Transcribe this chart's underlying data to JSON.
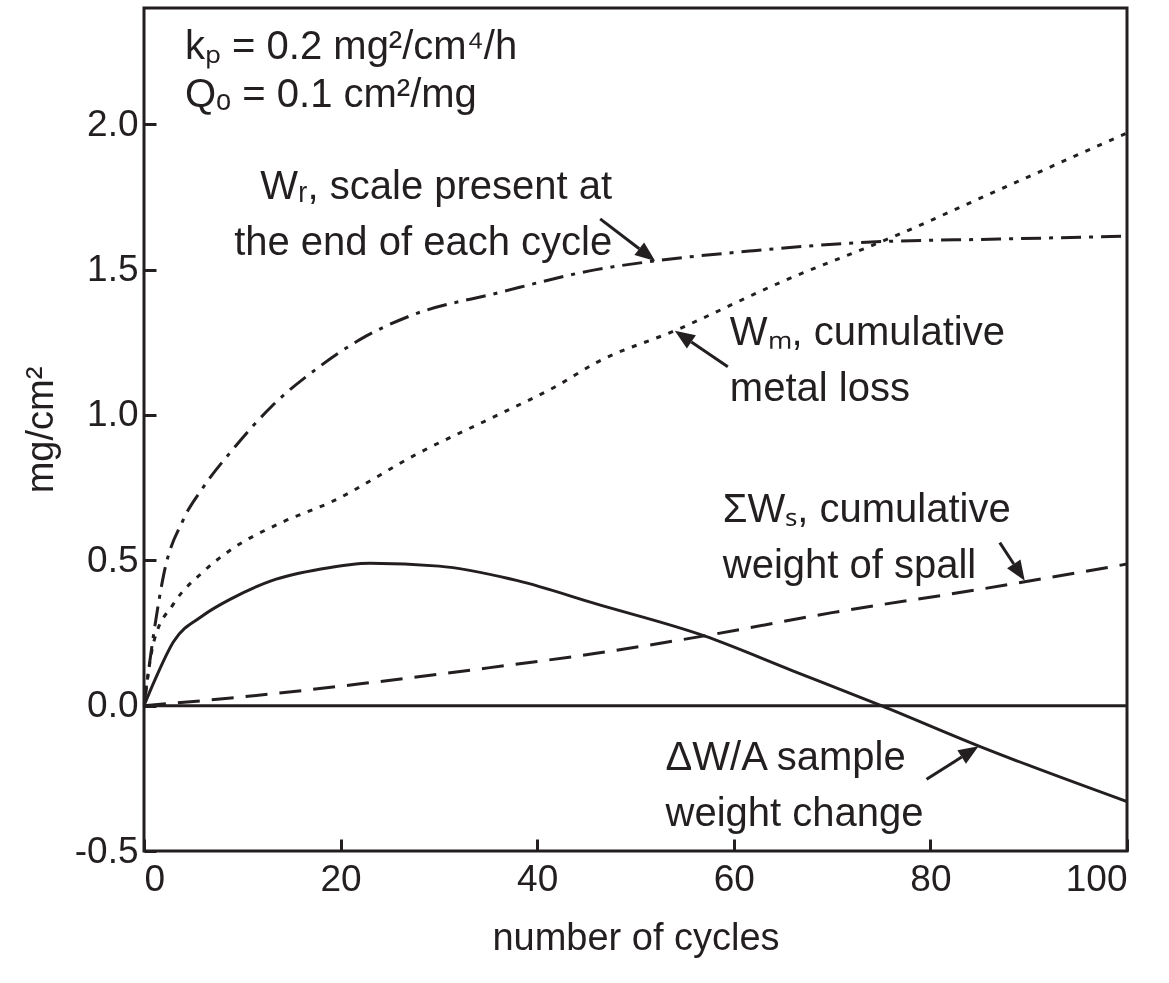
{
  "chart_data": {
    "type": "line",
    "xlabel": "number of cycles",
    "ylabel": "mg/cm²",
    "xlim": [
      0,
      100
    ],
    "xticks": [
      0,
      20,
      40,
      60,
      80,
      100
    ],
    "ylim": [
      -0.5,
      2.4
    ],
    "yticks": [
      {
        "value": -0.5,
        "label": "-0.5"
      },
      {
        "value": 0,
        "label": "0.0"
      },
      {
        "value": 0.5,
        "label": "0.5"
      },
      {
        "value": 1,
        "label": "1.0"
      },
      {
        "value": 1.5,
        "label": "1.5"
      },
      {
        "value": 2,
        "label": "2.0"
      }
    ],
    "grid": false,
    "series": [
      {
        "color": "#231f20",
        "line_style": "dashdot",
        "x": [
          0,
          1,
          2,
          4,
          6,
          9,
          13,
          18,
          22,
          27,
          36,
          46,
          52,
          62,
          74,
          87,
          100
        ],
        "values": [
          0,
          0.25,
          0.45,
          0.64,
          0.75,
          0.88,
          1.03,
          1.17,
          1.26,
          1.34,
          1.42,
          1.5,
          1.53,
          1.565,
          1.595,
          1.605,
          1.615
        ]
      },
      {
        "color": "#231f20",
        "line_style": "dotted",
        "x": [
          0,
          1,
          3,
          6,
          9,
          14,
          19,
          28,
          36,
          42,
          46,
          54,
          65,
          76,
          88,
          100
        ],
        "values": [
          0,
          0.22,
          0.35,
          0.46,
          0.54,
          0.63,
          0.7,
          0.87,
          1.0,
          1.1,
          1.18,
          1.29,
          1.46,
          1.61,
          1.79,
          1.97
        ]
      },
      {
        "color": "#231f20",
        "line_style": "dashed",
        "x": [
          0,
          10,
          22,
          35,
          46,
          57,
          70,
          85,
          100
        ],
        "values": [
          0,
          0.03,
          0.075,
          0.13,
          0.18,
          0.24,
          0.32,
          0.4,
          0.487
        ]
      },
      {
        "color": "#231f20",
        "line_style": "solid",
        "x": [
          0,
          1,
          3,
          6,
          9,
          13,
          18,
          23,
          30,
          38,
          46,
          57,
          66,
          75,
          85,
          100
        ],
        "values": [
          0,
          0.08,
          0.22,
          0.31,
          0.37,
          0.43,
          0.47,
          0.49,
          0.48,
          0.43,
          0.35,
          0.24,
          0.12,
          0,
          -0.14,
          -0.33
        ]
      }
    ],
    "ref_lines": [
      {
        "axis": "y",
        "value": 0,
        "color": "#231f20"
      }
    ],
    "annotations": [
      "kₚ = 0.2 mg²/cm⁴/h",
      "Qₒ = 0.1 cm²/mg",
      {
        "text": "Wᵣ, scale present at\nthe end of each cycle",
        "x": 52,
        "y": 1.53
      },
      {
        "text": "Wₘ, cumulative\nmetal loss",
        "x": 54,
        "y": 1.29
      },
      {
        "text": "ΣWₛ, cumulative\nweight of spall",
        "x": 89.6,
        "y": 0.43
      },
      {
        "text": "ΔW/A sample\nweight change",
        "x": 84.9,
        "y": -0.14
      }
    ]
  }
}
